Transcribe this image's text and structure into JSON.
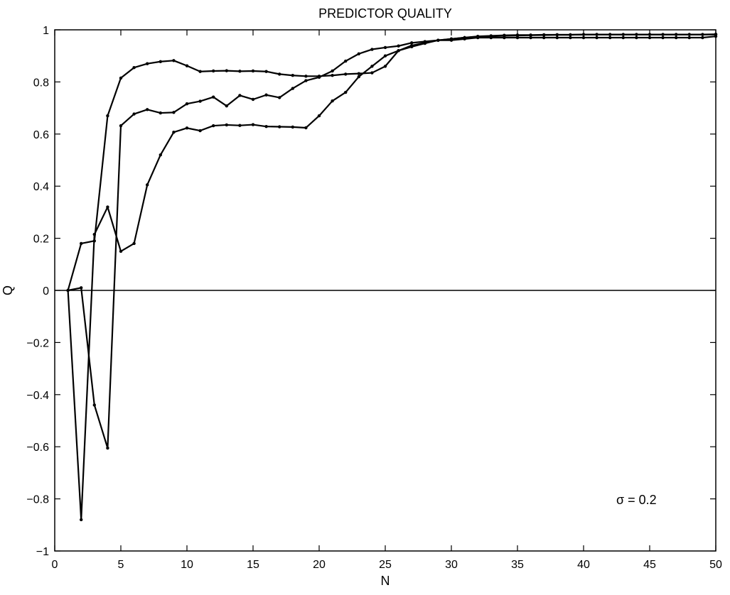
{
  "chart_data": {
    "type": "line",
    "title": "PREDICTOR QUALITY",
    "xlabel": "N",
    "ylabel": "Q",
    "xlim": [
      0,
      50
    ],
    "ylim": [
      -1,
      1
    ],
    "xticks": [
      0,
      5,
      10,
      15,
      20,
      25,
      30,
      35,
      40,
      45,
      50
    ],
    "yticks": [
      -1,
      -0.8,
      -0.6,
      -0.4,
      -0.2,
      0,
      0.2,
      0.4,
      0.6,
      0.8,
      1
    ],
    "xtick_labels": [
      "0",
      "5",
      "10",
      "15",
      "20",
      "25",
      "30",
      "35",
      "40",
      "45",
      "50"
    ],
    "ytick_labels": [
      "−1",
      "−0.8",
      "−0.6",
      "−0.4",
      "−0.2",
      "0",
      "0.2",
      "0.4",
      "0.6",
      "0.8",
      "1"
    ],
    "zero_line": true,
    "grid": false,
    "annotation": "σ = 0.2",
    "x": [
      1,
      2,
      3,
      4,
      5,
      6,
      7,
      8,
      9,
      10,
      11,
      12,
      13,
      14,
      15,
      16,
      17,
      18,
      19,
      20,
      21,
      22,
      23,
      24,
      25,
      26,
      27,
      28,
      29,
      30,
      31,
      32,
      33,
      34,
      35,
      36,
      37,
      38,
      39,
      40,
      41,
      42,
      43,
      44,
      45,
      46,
      47,
      48,
      49,
      50
    ],
    "series": [
      {
        "values": [
          0,
          0.18,
          0.19,
          0.67,
          0.815,
          0.855,
          0.87,
          0.878,
          0.882,
          0.862,
          0.84,
          0.842,
          0.843,
          0.841,
          0.842,
          0.84,
          0.83,
          0.825,
          0.822,
          0.822,
          0.825,
          0.83,
          0.832,
          0.835,
          0.86,
          0.92,
          0.935,
          0.948,
          0.96,
          0.965,
          0.97,
          0.975,
          0.977,
          0.979,
          0.98,
          0.98,
          0.981,
          0.981,
          0.981,
          0.982,
          0.982,
          0.982,
          0.982,
          0.982,
          0.982,
          0.982,
          0.982,
          0.982,
          0.982,
          0.983
        ]
      },
      {
        "values": [
          0,
          -0.88,
          0.215,
          0.32,
          0.15,
          0.18,
          0.405,
          0.52,
          0.607,
          0.623,
          0.613,
          0.632,
          0.635,
          0.633,
          0.636,
          0.629,
          0.628,
          0.627,
          0.624,
          0.67,
          0.727,
          0.76,
          0.82,
          0.86,
          0.9,
          0.92,
          0.94,
          0.95,
          0.96,
          0.965,
          0.97,
          0.973,
          0.975,
          0.977,
          0.978,
          0.979,
          0.98,
          0.981,
          0.981,
          0.982,
          0.982,
          0.982,
          0.982,
          0.982,
          0.982,
          0.982,
          0.982,
          0.982,
          0.982,
          0.982
        ]
      },
      {
        "values": [
          0,
          0.01,
          -0.44,
          -0.605,
          0.632,
          0.677,
          0.694,
          0.681,
          0.683,
          0.716,
          0.726,
          0.742,
          0.708,
          0.748,
          0.733,
          0.75,
          0.74,
          0.775,
          0.805,
          0.818,
          0.842,
          0.88,
          0.908,
          0.925,
          0.932,
          0.938,
          0.95,
          0.955,
          0.96,
          0.96,
          0.965,
          0.97,
          0.97,
          0.97,
          0.97,
          0.97,
          0.97,
          0.97,
          0.97,
          0.97,
          0.97,
          0.97,
          0.97,
          0.97,
          0.97,
          0.97,
          0.97,
          0.97,
          0.97,
          0.975
        ]
      }
    ]
  }
}
